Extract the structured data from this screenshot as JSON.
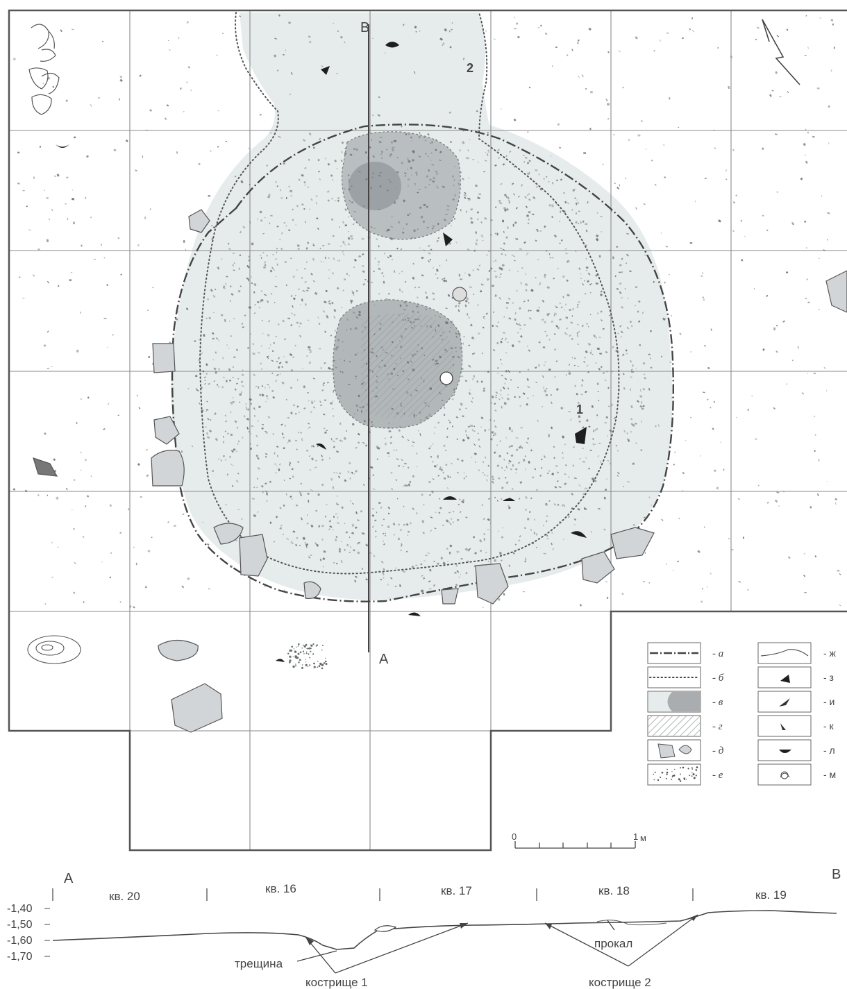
{
  "plan": {
    "section_start": "А",
    "section_end": "В",
    "feature_labels": [
      "1",
      "2"
    ],
    "scale": {
      "zero": "0",
      "one": "1",
      "unit": "м"
    }
  },
  "legend": {
    "left": [
      {
        "icon": "dash-dot-line",
        "label": "- а"
      },
      {
        "icon": "dotted-line",
        "label": "- б"
      },
      {
        "icon": "dark-gray-fill",
        "label": "- в"
      },
      {
        "icon": "hatched-fill",
        "label": "- г"
      },
      {
        "icon": "stone-blocks",
        "label": "- д"
      },
      {
        "icon": "scatter-dots",
        "label": "- е"
      }
    ],
    "right": [
      {
        "icon": "profile-line",
        "label": "- ж"
      },
      {
        "icon": "black-fragment",
        "label": "- з"
      },
      {
        "icon": "bone-point",
        "label": "- и"
      },
      {
        "icon": "small-point",
        "label": "- к"
      },
      {
        "icon": "half-circle",
        "label": "- л"
      },
      {
        "icon": "shell-symbol",
        "label": "- м"
      }
    ]
  },
  "profile": {
    "start_letter": "А",
    "end_letter": "В",
    "squares": [
      "кв. 20",
      "кв. 16",
      "кв. 17",
      "кв. 18",
      "кв. 19"
    ],
    "depths": [
      "-1,40",
      "-1,50",
      "-1,60",
      "-1,70"
    ],
    "annotations": {
      "crack": "трещина",
      "hearth1": "кострище 1",
      "hearth2": "кострище 2",
      "burnt": "прокал"
    }
  },
  "colors": {
    "grid": "#8a8a8a",
    "frame": "#5a5a5a",
    "fill_light": "#e6ecec",
    "fill_dark": "#a9adb0",
    "stone": "#cfd2d4",
    "ink": "#3a3a3a"
  }
}
